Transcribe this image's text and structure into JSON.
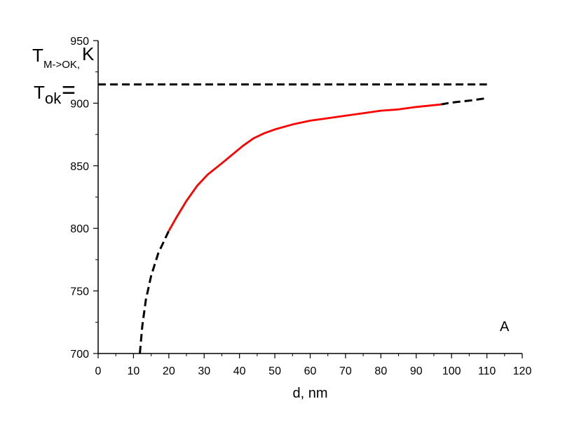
{
  "chart_data": {
    "type": "line",
    "xlabel": "d, nm",
    "ylabel": {
      "main": "T",
      "sub": "M->OK,",
      "unit": "K"
    },
    "tok_label": {
      "main": "T",
      "sub": "ok",
      "sign": "="
    },
    "panel_label": "A",
    "xlim": [
      0,
      120
    ],
    "ylim": [
      700,
      950
    ],
    "x_ticks": [
      0,
      10,
      20,
      30,
      40,
      50,
      60,
      70,
      80,
      90,
      100,
      110,
      120
    ],
    "y_ticks": [
      700,
      750,
      800,
      850,
      900,
      950
    ],
    "grid": false,
    "series": [
      {
        "style": "dashed",
        "color": "#000000",
        "x": [
          11.8,
          12.5,
          13.5,
          15,
          17,
          19,
          20
        ],
        "y": [
          700,
          722,
          743,
          762,
          780,
          792,
          798
        ]
      },
      {
        "style": "solid",
        "color": "#ff0000",
        "x": [
          20,
          22,
          25,
          28,
          31,
          35,
          38,
          41,
          44,
          47,
          50,
          55,
          60,
          65,
          70,
          75,
          80,
          85,
          90,
          97
        ],
        "y": [
          798,
          808,
          822,
          834,
          843,
          852,
          859,
          866,
          872,
          876,
          879,
          883,
          886,
          888,
          890,
          892,
          894,
          895,
          897,
          899
        ]
      },
      {
        "style": "dashed",
        "color": "#000000",
        "x": [
          97,
          100,
          105,
          110
        ],
        "y": [
          899,
          900.5,
          902,
          904
        ]
      },
      {
        "style": "dashed",
        "color": "#000000",
        "x": [
          0,
          110
        ],
        "y": [
          915,
          915
        ]
      }
    ]
  }
}
